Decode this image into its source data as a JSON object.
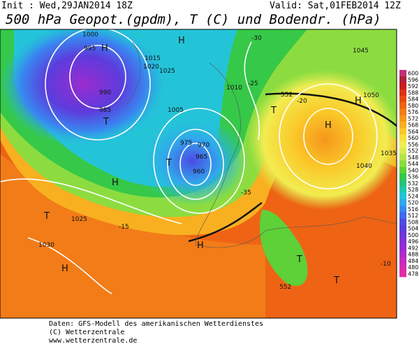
{
  "header": {
    "init": "Init : Wed,29JAN2014 18Z",
    "valid": "Valid: Sat,01FEB2014 12Z",
    "title": "500 hPa Geopot.(gpdm), T (C) und Bodendr. (hPa)"
  },
  "colorbar": {
    "labels": [
      600,
      596,
      592,
      588,
      584,
      580,
      576,
      572,
      568,
      564,
      560,
      556,
      552,
      548,
      544,
      540,
      536,
      532,
      528,
      524,
      520,
      516,
      512,
      508,
      504,
      500,
      496,
      492,
      488,
      484,
      480,
      478
    ],
    "colors": [
      "#c0307a",
      "#b0203a",
      "#c81e1e",
      "#dc3214",
      "#e64a12",
      "#ee6414",
      "#f27c18",
      "#f6961c",
      "#f8b020",
      "#fac828",
      "#fade3a",
      "#f2ec50",
      "#d8ec50",
      "#b4e448",
      "#8cdc40",
      "#5ed038",
      "#36c848",
      "#24c47a",
      "#20c8ac",
      "#24c4d8",
      "#30a8ec",
      "#3888f0",
      "#4068ec",
      "#4c4ce4",
      "#5c3cdc",
      "#7034d8",
      "#8430d4",
      "#9a2cd0",
      "#b02cc8",
      "#c42cc0",
      "#d42cb4",
      "#e02ca8"
    ]
  },
  "map_labels": [
    "H",
    "H",
    "T",
    "T",
    "T",
    "H",
    "H",
    "H",
    "H",
    "T",
    "H",
    "T",
    "T",
    "1000",
    "995",
    "990",
    "985",
    "1015",
    "1020",
    "1025",
    "1010",
    "1005",
    "975",
    "970",
    "965",
    "960",
    "1030",
    "1035",
    "1040",
    "1045",
    "1050",
    "1025",
    "-35",
    "-30",
    "-25",
    "-20",
    "-15",
    "-10",
    "552",
    "552"
  ],
  "footer": [
    "Daten: GFS-Modell des amerikanischen Wetterdienstes",
    "(C) Wetterzentrale",
    "www.wetterzentrale.de"
  ]
}
